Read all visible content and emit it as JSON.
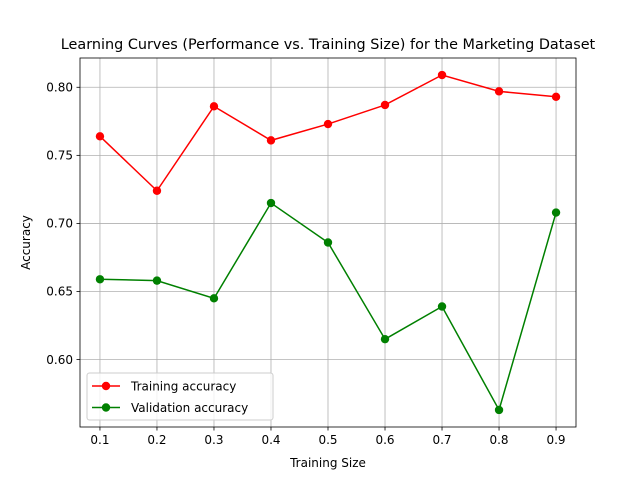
{
  "chart_data": {
    "type": "line",
    "title": "Learning Curves (Performance vs. Training Size) for the Marketing Dataset",
    "xlabel": "Training Size",
    "ylabel": "Accuracy",
    "x": [
      0.1,
      0.2,
      0.3,
      0.4,
      0.5,
      0.6,
      0.7,
      0.8,
      0.9
    ],
    "x_ticks": [
      "0.1",
      "0.2",
      "0.3",
      "0.4",
      "0.5",
      "0.6",
      "0.7",
      "0.8",
      "0.9"
    ],
    "y_ticks": [
      "0.60",
      "0.65",
      "0.70",
      "0.75",
      "0.80"
    ],
    "xlim": [
      0.065,
      0.935
    ],
    "ylim": [
      0.5505,
      0.8215
    ],
    "grid": true,
    "legend_position": "lower-left",
    "series": [
      {
        "name": "Training accuracy",
        "color": "#ff0000",
        "marker": "circle",
        "values": [
          0.764,
          0.724,
          0.786,
          0.761,
          0.773,
          0.787,
          0.809,
          0.797,
          0.793
        ]
      },
      {
        "name": "Validation accuracy",
        "color": "#008000",
        "marker": "circle",
        "values": [
          0.659,
          0.658,
          0.645,
          0.715,
          0.686,
          0.615,
          0.639,
          0.563,
          0.708
        ]
      }
    ]
  }
}
